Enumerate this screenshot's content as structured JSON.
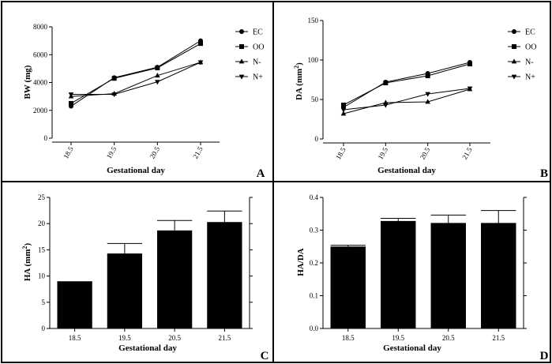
{
  "chart_data": [
    {
      "panel": "A",
      "type": "line",
      "x": [
        "18.5",
        "19.5",
        "20.5",
        "21.5"
      ],
      "xlabel": "Gestational day",
      "ylabel": "BW (mg)",
      "ylim": [
        0,
        8000
      ],
      "yticks": [
        "0",
        "2000",
        "4000",
        "6000",
        "8000"
      ],
      "legend_position": "right",
      "series": [
        {
          "name": "EC",
          "marker": "circle",
          "values": [
            2300,
            4350,
            5100,
            7000
          ]
        },
        {
          "name": "OO",
          "marker": "square",
          "values": [
            2500,
            4300,
            5050,
            6800
          ]
        },
        {
          "name": "N-",
          "marker": "triangle-up",
          "values": [
            3000,
            3200,
            4500,
            5450
          ]
        },
        {
          "name": "N+",
          "marker": "triangle-down",
          "values": [
            3150,
            3150,
            4050,
            5450
          ]
        }
      ]
    },
    {
      "panel": "B",
      "type": "line",
      "x": [
        "18.5",
        "19.5",
        "20.5",
        "21.5"
      ],
      "xlabel": "Gestational day",
      "ylabel_main": "DA (mm",
      "ylabel_sup": "2",
      "ylabel_end": ")",
      "ylim": [
        0,
        150
      ],
      "yticks": [
        "0",
        "50",
        "100",
        "150"
      ],
      "legend_position": "right",
      "series": [
        {
          "name": "EC",
          "marker": "circle",
          "values": [
            40,
            72,
            83,
            97
          ]
        },
        {
          "name": "OO",
          "marker": "square",
          "values": [
            43,
            71,
            80,
            95
          ]
        },
        {
          "name": "N-",
          "marker": "triangle-up",
          "values": [
            32,
            46,
            47,
            63
          ]
        },
        {
          "name": "N+",
          "marker": "triangle-down",
          "values": [
            37,
            43,
            57,
            64
          ]
        }
      ]
    },
    {
      "panel": "C",
      "type": "bar",
      "categories": [
        "18.5",
        "19.5",
        "20.5",
        "21.5"
      ],
      "values": [
        9.0,
        14.3,
        18.7,
        20.3
      ],
      "errors": [
        0,
        1.9,
        1.9,
        2.1
      ],
      "xlabel": "Gestational day",
      "ylabel_main": "HA (mm",
      "ylabel_sup": "2",
      "ylabel_end": ")",
      "ylim": [
        0,
        25
      ],
      "yticks": [
        "0",
        "5",
        "10",
        "15",
        "20",
        "25"
      ]
    },
    {
      "panel": "D",
      "type": "bar",
      "categories": [
        "18.5",
        "19.5",
        "20.5",
        "21.5"
      ],
      "values": [
        0.25,
        0.328,
        0.322,
        0.322
      ],
      "errors": [
        0.004,
        0.008,
        0.024,
        0.038
      ],
      "xlabel": "Gestational day",
      "ylabel": "HA/DA",
      "ylim": [
        0,
        0.4
      ],
      "yticks": [
        "0.0",
        "0.1",
        "0.2",
        "0.3",
        "0.4"
      ]
    }
  ]
}
